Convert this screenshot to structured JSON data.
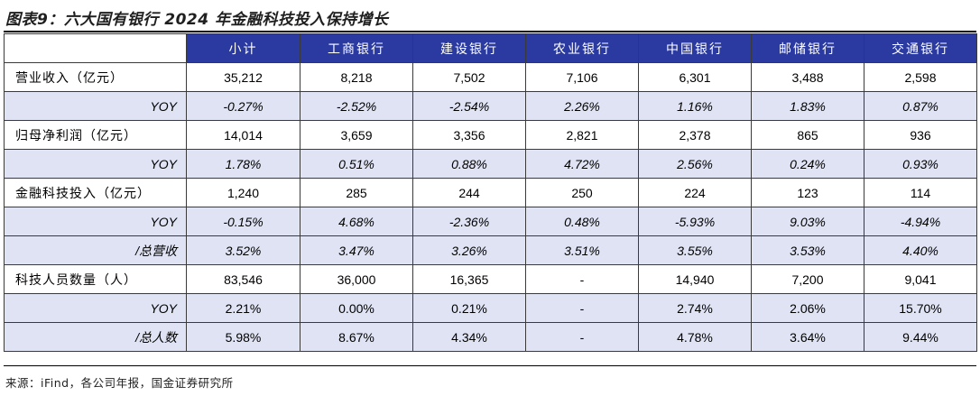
{
  "title": "图表9：六大国有银行 2024 年金融科技投入保持增长",
  "headers": [
    "",
    "小计",
    "工商银行",
    "建设银行",
    "农业银行",
    "中国银行",
    "邮储银行",
    "交通银行"
  ],
  "rows": [
    {
      "label": "营业收入（亿元）",
      "kind": "main",
      "values": [
        "35,212",
        "8,218",
        "7,502",
        "7,106",
        "6,301",
        "3,488",
        "2,598"
      ]
    },
    {
      "label": "YOY",
      "kind": "sub",
      "values": [
        "-0.27%",
        "-2.52%",
        "-2.54%",
        "2.26%",
        "1.16%",
        "1.83%",
        "0.87%"
      ]
    },
    {
      "label": "归母净利润（亿元）",
      "kind": "main",
      "values": [
        "14,014",
        "3,659",
        "3,356",
        "2,821",
        "2,378",
        "865",
        "936"
      ]
    },
    {
      "label": "YOY",
      "kind": "sub",
      "values": [
        "1.78%",
        "0.51%",
        "0.88%",
        "4.72%",
        "2.56%",
        "0.24%",
        "0.93%"
      ]
    },
    {
      "label": "金融科技投入（亿元）",
      "kind": "main",
      "values": [
        "1,240",
        "285",
        "244",
        "250",
        "224",
        "123",
        "114"
      ]
    },
    {
      "label": "YOY",
      "kind": "sub",
      "values": [
        "-0.15%",
        "4.68%",
        "-2.36%",
        "0.48%",
        "-5.93%",
        "9.03%",
        "-4.94%"
      ]
    },
    {
      "label": "/总营收",
      "kind": "sub",
      "values": [
        "3.52%",
        "3.47%",
        "3.26%",
        "3.51%",
        "3.55%",
        "3.53%",
        "4.40%"
      ]
    },
    {
      "label": "科技人员数量（人）",
      "kind": "main",
      "values": [
        "83,546",
        "36,000",
        "16,365",
        "-",
        "14,940",
        "7,200",
        "9,041"
      ]
    },
    {
      "label": "YOY",
      "kind": "sub-plain",
      "values": [
        "2.21%",
        "0.00%",
        "0.21%",
        "-",
        "2.74%",
        "2.06%",
        "15.70%"
      ]
    },
    {
      "label": "/总人数",
      "kind": "sub-plain",
      "values": [
        "5.98%",
        "8.67%",
        "4.34%",
        "-",
        "4.78%",
        "3.64%",
        "9.44%"
      ]
    }
  ],
  "source": "来源：iFind，各公司年报，国金证券研究所",
  "colors": {
    "header_bg": "#2b3aa0",
    "sub_row_bg": "#dfe3f4"
  }
}
